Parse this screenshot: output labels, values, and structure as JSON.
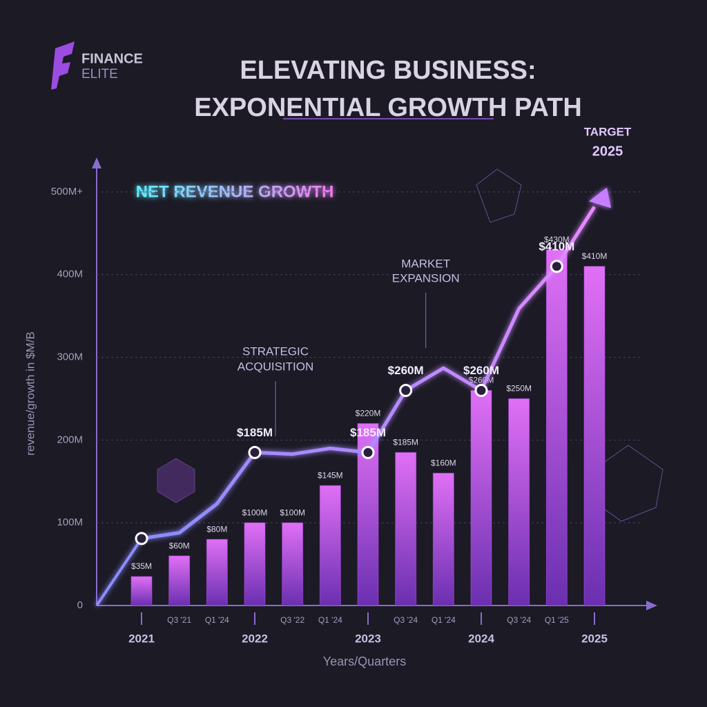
{
  "logo": {
    "line1": "FINANCE",
    "line2": "ELITE"
  },
  "chart_data": {
    "type": "combo",
    "title": [
      "ELEVATING BUSINESS:",
      "EXPONENTIAL GROWTH PATH"
    ],
    "subtitle": "NET REVENUE GROWTH",
    "y_label": "revenue/growth in $M/B",
    "x_label": "Years/Quarters",
    "categories": [
      "2021",
      "Q3 '21",
      "Q1 '24",
      "2022",
      "Q3 '22",
      "Q1 '24",
      "2023",
      "Q3 '24",
      "Q1 '24",
      "2024",
      "Q3 '24",
      "Q1 '25",
      "2025"
    ],
    "ylim": [
      0,
      530
    ],
    "yticks": [
      0,
      {
        "value": 100,
        "label": "100M"
      },
      {
        "value": 200,
        "label": "200M"
      },
      {
        "value": 300,
        "label": "300M"
      },
      {
        "value": 400,
        "label": "400M"
      },
      {
        "value": 500,
        "label": "500M+"
      }
    ],
    "grid": true,
    "series": [
      {
        "type": "bar",
        "color": "#b44ae8",
        "values": [
          35,
          60,
          80,
          100,
          100,
          145,
          220,
          185,
          160,
          260,
          250,
          430,
          410
        ],
        "value_labels": [
          "$35M",
          "$60M",
          "$80M",
          "$100M",
          "$100M",
          "$145M",
          "$220M",
          "$185M",
          "$160M",
          "$260M",
          "$250M",
          "$430M",
          "$410M"
        ]
      },
      {
        "type": "line",
        "color": "#c77dff",
        "values": [
          81,
          88,
          123,
          185,
          183,
          190,
          185,
          260,
          287,
          260,
          359,
          410,
          482
        ],
        "value_labels": [
          null,
          null,
          null,
          "$185M",
          null,
          null,
          "$185M",
          "$260M",
          null,
          "$260M",
          null,
          "$410M",
          null
        ],
        "markers": [
          0,
          3,
          6,
          7,
          9,
          11
        ]
      }
    ],
    "annotations": [
      {
        "text": [
          "STRATEGIC",
          "ACQUISITION"
        ],
        "category": 3
      },
      {
        "text": [
          "MARKET",
          "EXPANSION"
        ],
        "category": 7
      },
      {
        "text": [
          "TARGET",
          "2025"
        ],
        "category": 12
      }
    ]
  }
}
